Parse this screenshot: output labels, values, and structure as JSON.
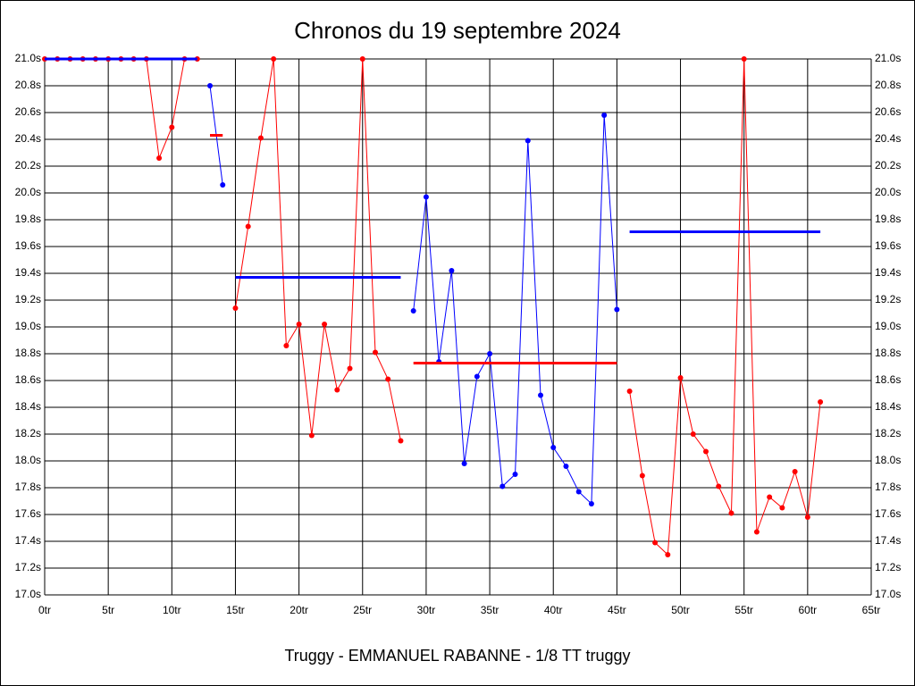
{
  "chart_data": {
    "type": "line",
    "title": "Chronos du 19 septembre 2024",
    "footer": "Truggy - EMMANUEL RABANNE - 1/8 TT truggy",
    "xlim": [
      0,
      65
    ],
    "ylim": [
      17.0,
      21.0
    ],
    "grid": true,
    "xticks": [
      {
        "value": 0,
        "label": "0tr"
      },
      {
        "value": 5,
        "label": "5tr"
      },
      {
        "value": 10,
        "label": "10tr"
      },
      {
        "value": 15,
        "label": "15tr"
      },
      {
        "value": 20,
        "label": "20tr"
      },
      {
        "value": 25,
        "label": "25tr"
      },
      {
        "value": 30,
        "label": "30tr"
      },
      {
        "value": 35,
        "label": "35tr"
      },
      {
        "value": 40,
        "label": "40tr"
      },
      {
        "value": 45,
        "label": "45tr"
      },
      {
        "value": 50,
        "label": "50tr"
      },
      {
        "value": 55,
        "label": "55tr"
      },
      {
        "value": 60,
        "label": "60tr"
      },
      {
        "value": 65,
        "label": "65tr"
      }
    ],
    "yticks": [
      {
        "value": 17.0,
        "label": "17.0s"
      },
      {
        "value": 17.2,
        "label": "17.2s"
      },
      {
        "value": 17.4,
        "label": "17.4s"
      },
      {
        "value": 17.6,
        "label": "17.6s"
      },
      {
        "value": 17.8,
        "label": "17.8s"
      },
      {
        "value": 18.0,
        "label": "18.0s"
      },
      {
        "value": 18.2,
        "label": "18.2s"
      },
      {
        "value": 18.4,
        "label": "18.4s"
      },
      {
        "value": 18.6,
        "label": "18.6s"
      },
      {
        "value": 18.8,
        "label": "18.8s"
      },
      {
        "value": 19.0,
        "label": "19.0s"
      },
      {
        "value": 19.2,
        "label": "19.2s"
      },
      {
        "value": 19.4,
        "label": "19.4s"
      },
      {
        "value": 19.6,
        "label": "19.6s"
      },
      {
        "value": 19.8,
        "label": "19.8s"
      },
      {
        "value": 20.0,
        "label": "20.0s"
      },
      {
        "value": 20.2,
        "label": "20.2s"
      },
      {
        "value": 20.4,
        "label": "20.4s"
      },
      {
        "value": 20.6,
        "label": "20.6s"
      },
      {
        "value": 20.8,
        "label": "20.8s"
      },
      {
        "value": 21.0,
        "label": "21.0s"
      }
    ],
    "series": [
      {
        "color": "#ff0000",
        "x": [
          0,
          1,
          2,
          3,
          4,
          5,
          6,
          7,
          8,
          9,
          10,
          11,
          12
        ],
        "values": [
          21.0,
          21.0,
          21.0,
          21.0,
          21.0,
          21.0,
          21.0,
          21.0,
          21.0,
          20.26,
          20.49,
          21.0,
          21.0
        ]
      },
      {
        "color": "#0000ff",
        "x": [
          13,
          14
        ],
        "values": [
          20.8,
          20.06
        ]
      },
      {
        "color": "#ff0000",
        "x": [
          15,
          16,
          17,
          18,
          19,
          20,
          21,
          22,
          23,
          24,
          25,
          26,
          27,
          28
        ],
        "values": [
          19.14,
          19.75,
          20.41,
          21.0,
          18.86,
          19.02,
          18.19,
          19.02,
          18.53,
          18.69,
          21.0,
          18.81,
          18.61,
          18.15
        ]
      },
      {
        "color": "#0000ff",
        "x": [
          29,
          30,
          31,
          32,
          33,
          34,
          35,
          36,
          37,
          38,
          39,
          40,
          41,
          42,
          43,
          44,
          45
        ],
        "values": [
          19.12,
          19.97,
          18.74,
          19.42,
          17.98,
          18.63,
          18.8,
          17.81,
          17.9,
          20.39,
          18.49,
          18.1,
          17.96,
          17.77,
          17.68,
          20.58,
          19.13
        ]
      },
      {
        "color": "#ff0000",
        "x": [
          46,
          47,
          48,
          49,
          50,
          51,
          52,
          53,
          54,
          55,
          56,
          57,
          58,
          59,
          60,
          61
        ],
        "values": [
          18.52,
          17.89,
          17.39,
          17.3,
          18.62,
          18.2,
          18.07,
          17.81,
          17.61,
          21.0,
          17.47,
          17.73,
          17.65,
          17.92,
          17.58,
          18.44
        ]
      }
    ],
    "means": [
      {
        "color": "#0000ff",
        "x": [
          0,
          12
        ],
        "value": 21.0
      },
      {
        "color": "#ff0000",
        "x": [
          13,
          14
        ],
        "value": 20.43
      },
      {
        "color": "#0000ff",
        "x": [
          15,
          28
        ],
        "value": 19.37
      },
      {
        "color": "#ff0000",
        "x": [
          29,
          45
        ],
        "value": 18.73
      },
      {
        "color": "#0000ff",
        "x": [
          46,
          61
        ],
        "value": 19.71
      }
    ]
  }
}
